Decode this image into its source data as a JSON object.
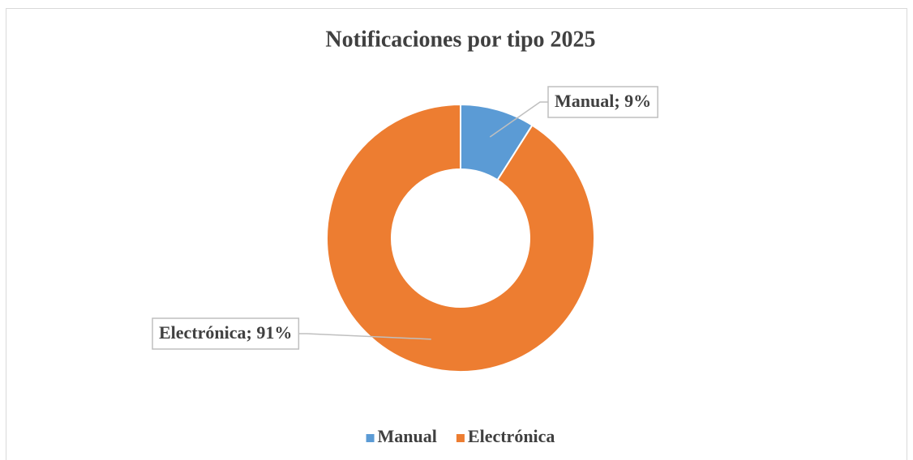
{
  "chart_data": {
    "type": "donut",
    "title": "Notificaciones por tipo 2025",
    "categories": [
      "Manual",
      "Electrónica"
    ],
    "values": [
      9,
      91
    ],
    "value_labels": [
      "Manual; 9%",
      "Electrónica; 91%"
    ],
    "colors": [
      "#5b9bd5",
      "#ed7d31"
    ],
    "legend": "bottom"
  }
}
